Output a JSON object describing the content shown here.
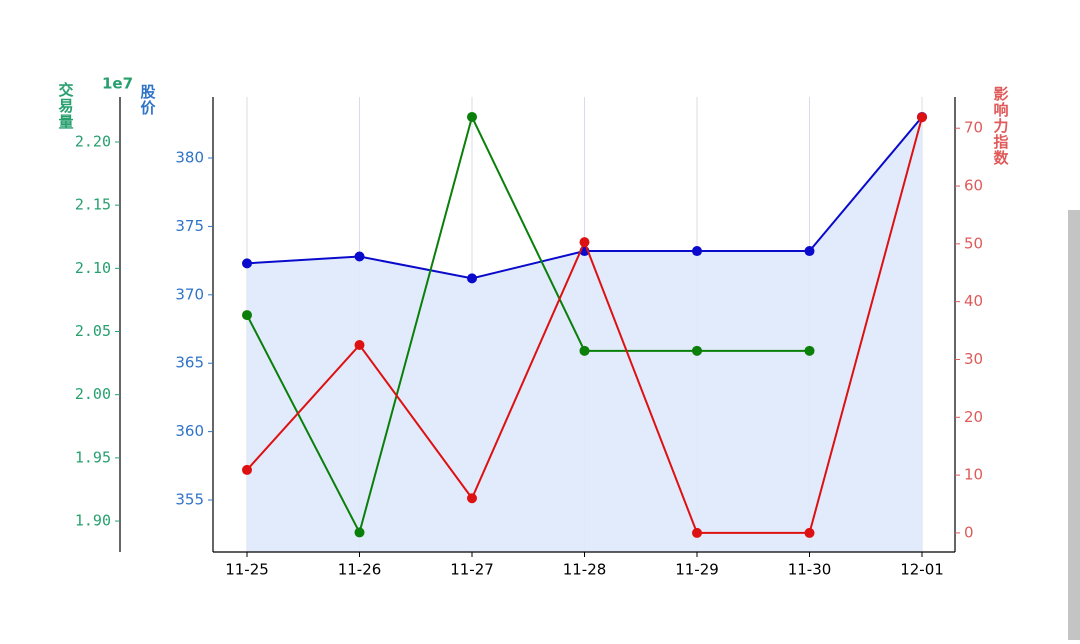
{
  "chart_data": {
    "type": "line",
    "categories": [
      "11-25",
      "11-26",
      "11-27",
      "11-28",
      "11-29",
      "11-30",
      "12-01"
    ],
    "ylabel": "股价",
    "y_color": "#2f74c8",
    "ylim": [
      351.2,
      384.46
    ],
    "yticks": [
      355,
      360,
      365,
      370,
      375,
      380
    ],
    "y2label": "交易量",
    "y2offset": "1e7",
    "y2_color": "#27a06e",
    "y2lim": [
      1.8755,
      2.2356
    ],
    "y2ticks": [
      {
        "value": 1.9,
        "label": "1.90"
      },
      1.95,
      {
        "value": 2.0,
        "label": "2.00"
      },
      2.05,
      {
        "value": 2.1,
        "label": "2.10"
      },
      2.15,
      {
        "value": 2.2,
        "label": "2.20"
      }
    ],
    "y3label": "影响力指数",
    "y3_color": "#e05a5a",
    "y3lim": [
      -3.3,
      75.4
    ],
    "y3ticks": [
      0,
      10,
      20,
      30,
      40,
      50,
      60,
      70
    ],
    "grid": true,
    "series": [
      {
        "axis": "y",
        "color": "#0a0acc",
        "fill": "#dfe9fb",
        "values": [
          372.3,
          372.8,
          371.2,
          373.2,
          373.2,
          373.2,
          383.0
        ]
      },
      {
        "axis": "y2",
        "color": "#0a7f0a",
        "values": [
          2.063,
          1.891,
          2.2198,
          2.0347,
          2.0347,
          2.0347,
          null
        ]
      },
      {
        "axis": "y3",
        "color": "#dd1111",
        "values": [
          10.9,
          32.5,
          6.0,
          50.3,
          0,
          0,
          71.9
        ]
      }
    ]
  }
}
